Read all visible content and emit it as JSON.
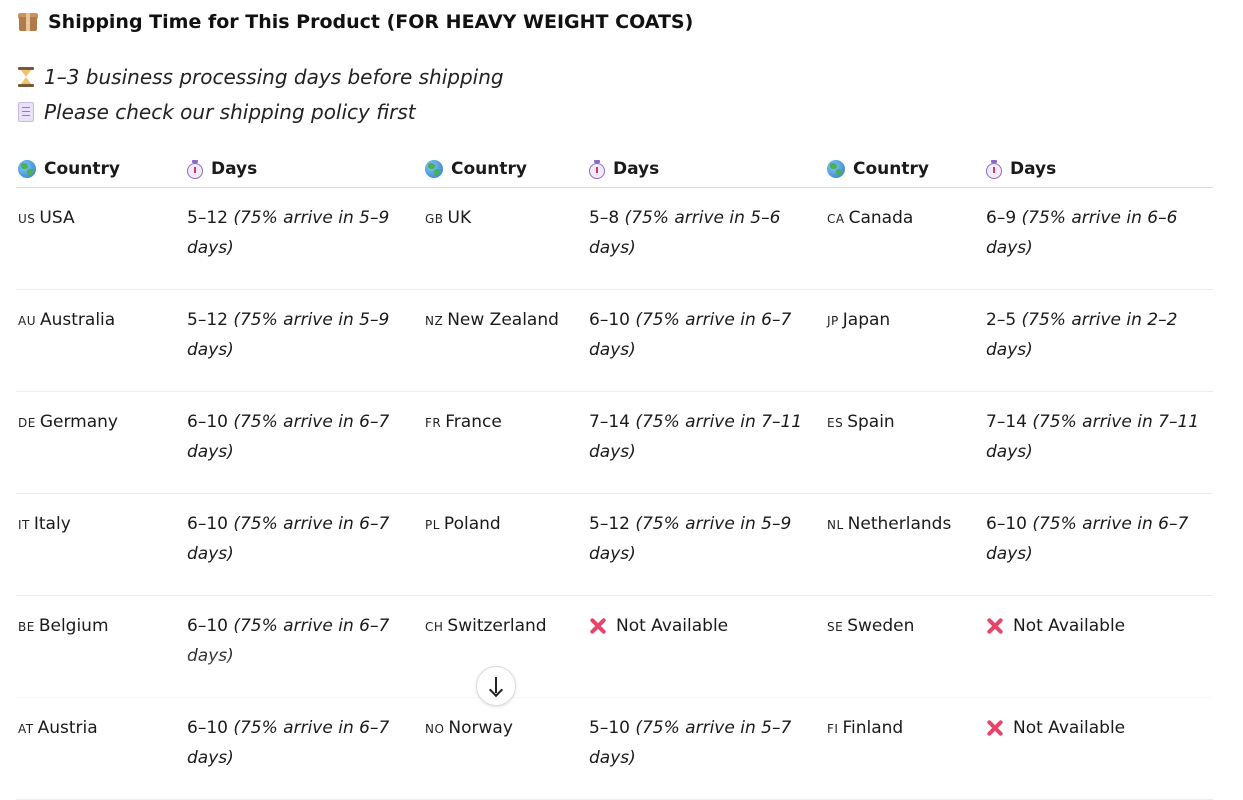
{
  "header": {
    "title": "Shipping Time for This Product (FOR HEAVY WEIGHT COATS)",
    "icon": "package-icon"
  },
  "notes": [
    {
      "icon": "hourglass-icon",
      "text": "1–3 business processing days before shipping"
    },
    {
      "icon": "document-icon",
      "text": "Please check our shipping policy first"
    }
  ],
  "table": {
    "headers": {
      "country": "Country",
      "days": "Days",
      "country_icon": "globe-icon",
      "days_icon": "stopwatch-icon"
    },
    "rows": [
      {
        "c1": {
          "code": "US",
          "name": "USA"
        },
        "d1": {
          "range": "5–12",
          "note": "(75% arrive in 5–9 days)"
        },
        "c2": {
          "code": "GB",
          "name": "UK"
        },
        "d2": {
          "range": "5–8",
          "note": "(75% arrive in 5–6 days)"
        },
        "c3": {
          "code": "CA",
          "name": "Canada"
        },
        "d3": {
          "range": "6–9",
          "note": "(75% arrive in 6–6 days)"
        }
      },
      {
        "c1": {
          "code": "AU",
          "name": "Australia"
        },
        "d1": {
          "range": "5–12",
          "note": "(75% arrive in 5–9 days)"
        },
        "c2": {
          "code": "NZ",
          "name": "New Zealand"
        },
        "d2": {
          "range": "6–10",
          "note": "(75% arrive in 6–7 days)"
        },
        "c3": {
          "code": "JP",
          "name": "Japan"
        },
        "d3": {
          "range": "2–5",
          "note": "(75% arrive in 2–2 days)"
        }
      },
      {
        "c1": {
          "code": "DE",
          "name": "Germany"
        },
        "d1": {
          "range": "6–10",
          "note": "(75% arrive in 6–7 days)"
        },
        "c2": {
          "code": "FR",
          "name": "France"
        },
        "d2": {
          "range": "7–14",
          "note": "(75% arrive in 7–11 days)"
        },
        "c3": {
          "code": "ES",
          "name": "Spain"
        },
        "d3": {
          "range": "7–14",
          "note": "(75% arrive in 7–11 days)"
        }
      },
      {
        "c1": {
          "code": "IT",
          "name": "Italy"
        },
        "d1": {
          "range": "6–10",
          "note": "(75% arrive in 6–7 days)"
        },
        "c2": {
          "code": "PL",
          "name": "Poland"
        },
        "d2": {
          "range": "5–12",
          "note": "(75% arrive in 5–9 days)"
        },
        "c3": {
          "code": "NL",
          "name": "Netherlands"
        },
        "d3": {
          "range": "6–10",
          "note": "(75% arrive in 6–7 days)"
        }
      },
      {
        "c1": {
          "code": "BE",
          "name": "Belgium"
        },
        "d1": {
          "range": "6–10",
          "note": "(75% arrive in 6–7 days)"
        },
        "c2": {
          "code": "CH",
          "name": "Switzerland"
        },
        "d2": {
          "unavailable": "Not Available"
        },
        "c3": {
          "code": "SE",
          "name": "Sweden"
        },
        "d3": {
          "unavailable": "Not Available"
        }
      },
      {
        "c1": {
          "code": "AT",
          "name": "Austria"
        },
        "d1": {
          "range": "6–10",
          "note": "(75% arrive in 6–7 days)"
        },
        "c2": {
          "code": "NO",
          "name": "Norway"
        },
        "d2": {
          "range": "5–10",
          "note": "(75% arrive in 5–7 days)"
        },
        "c3": {
          "code": "FI",
          "name": "Finland"
        },
        "d3": {
          "unavailable": "Not Available"
        }
      }
    ]
  },
  "scroll_button": {
    "icon": "arrow-down-icon"
  }
}
